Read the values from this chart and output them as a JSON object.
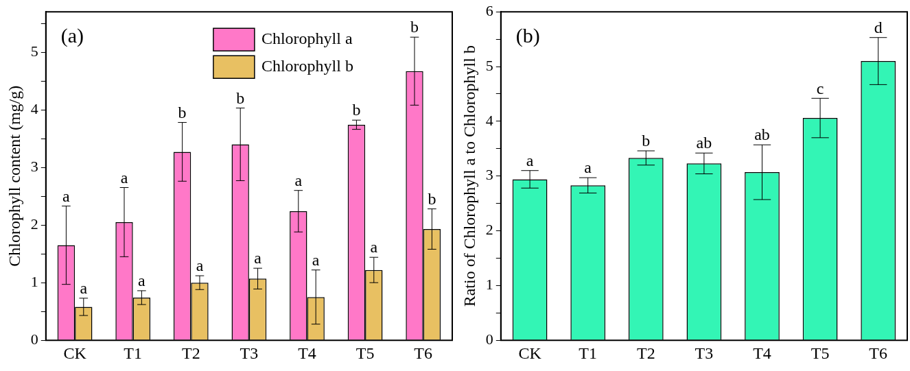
{
  "chart_data": [
    {
      "type": "bar",
      "ylabel": "Chlorophyll content (mg/g)",
      "annotations": [
        "(a)"
      ],
      "categories": [
        "CK",
        "T1",
        "T2",
        "T3",
        "T4",
        "T5",
        "T6"
      ],
      "series": [
        {
          "name": "Chlorophyll a",
          "color": "#ff78c8",
          "values": [
            1.65,
            2.05,
            3.27,
            3.4,
            2.24,
            3.74,
            4.67
          ],
          "errors": [
            0.68,
            0.6,
            0.51,
            0.63,
            0.36,
            0.08,
            0.59
          ],
          "value_labels": [
            "a",
            "a",
            "b",
            "b",
            "a",
            "b",
            "b"
          ]
        },
        {
          "name": "Chlorophyll b",
          "color": "#e8c062",
          "values": [
            0.58,
            0.74,
            1.0,
            1.07,
            0.75,
            1.22,
            1.93
          ],
          "errors": [
            0.15,
            0.12,
            0.12,
            0.18,
            0.47,
            0.22,
            0.35
          ],
          "value_labels": [
            "a",
            "a",
            "a",
            "a",
            "a",
            "a",
            "b"
          ]
        }
      ],
      "ylim": [
        0,
        5.7
      ],
      "yticks": [
        0,
        {
          "value": 0.5,
          "label": null
        },
        1,
        {
          "value": 1.5,
          "label": null
        },
        2,
        {
          "value": 2.5,
          "label": null
        },
        3,
        {
          "value": 3.5,
          "label": null
        },
        4,
        {
          "value": 4.5,
          "label": null
        },
        5,
        {
          "value": 5.5,
          "label": null
        }
      ],
      "legend": "top",
      "grid": false
    },
    {
      "type": "bar",
      "ylabel": "Ratio of Chlorophyll a to Chlorophyll b",
      "annotations": [
        "(b)"
      ],
      "categories": [
        "CK",
        "T1",
        "T2",
        "T3",
        "T4",
        "T5",
        "T6"
      ],
      "series": [
        {
          "color": "#33f5b5",
          "values": [
            2.94,
            2.83,
            3.33,
            3.23,
            3.07,
            4.06,
            5.1
          ],
          "errors": [
            0.16,
            0.14,
            0.13,
            0.19,
            0.5,
            0.36,
            0.43
          ],
          "value_labels": [
            "a",
            "a",
            "b",
            "ab",
            "ab",
            "c",
            "d"
          ]
        }
      ],
      "ylim": [
        0,
        6
      ],
      "yticks": [
        0,
        {
          "value": 0.5,
          "label": null
        },
        1,
        {
          "value": 1.5,
          "label": null
        },
        2,
        {
          "value": 2.5,
          "label": null
        },
        3,
        {
          "value": 3.5,
          "label": null
        },
        4,
        {
          "value": 4.5,
          "label": null
        },
        5,
        {
          "value": 5.5,
          "label": null
        },
        6
      ],
      "grid": false
    }
  ]
}
